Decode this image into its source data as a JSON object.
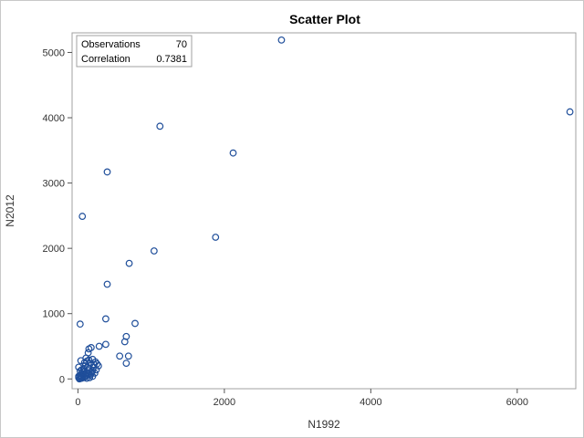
{
  "chart_data": {
    "type": "scatter",
    "title": "Scatter Plot",
    "xlabel": "N1992",
    "ylabel": "N2012",
    "xlim": [
      -80,
      6800
    ],
    "ylim": [
      -150,
      5300
    ],
    "xticks": [
      0,
      2000,
      4000,
      6000
    ],
    "yticks": [
      0,
      1000,
      2000,
      3000,
      4000,
      5000
    ],
    "grid": false,
    "marker_color": "#1f4e9a",
    "stats": {
      "observations_label": "Observations",
      "observations_value": "70",
      "correlation_label": "Correlation",
      "correlation_value": "0.7381"
    },
    "points": [
      [
        2780,
        5190
      ],
      [
        6720,
        4090
      ],
      [
        1120,
        3870
      ],
      [
        2120,
        3460
      ],
      [
        400,
        3170
      ],
      [
        60,
        2490
      ],
      [
        1880,
        2170
      ],
      [
        1040,
        1960
      ],
      [
        700,
        1770
      ],
      [
        400,
        1450
      ],
      [
        30,
        840
      ],
      [
        780,
        850
      ],
      [
        380,
        920
      ],
      [
        660,
        650
      ],
      [
        640,
        570
      ],
      [
        380,
        530
      ],
      [
        290,
        500
      ],
      [
        180,
        480
      ],
      [
        150,
        460
      ],
      [
        140,
        400
      ],
      [
        570,
        350
      ],
      [
        690,
        350
      ],
      [
        660,
        240
      ],
      [
        40,
        280
      ],
      [
        120,
        270
      ],
      [
        200,
        300
      ],
      [
        240,
        260
      ],
      [
        170,
        240
      ],
      [
        280,
        200
      ],
      [
        100,
        200
      ],
      [
        210,
        180
      ],
      [
        150,
        160
      ],
      [
        80,
        150
      ],
      [
        250,
        140
      ],
      [
        10,
        180
      ],
      [
        190,
        110
      ],
      [
        120,
        100
      ],
      [
        60,
        80
      ],
      [
        30,
        60
      ],
      [
        200,
        40
      ],
      [
        110,
        40
      ],
      [
        80,
        20
      ],
      [
        50,
        10
      ],
      [
        20,
        0
      ],
      [
        90,
        120
      ],
      [
        140,
        130
      ],
      [
        180,
        80
      ],
      [
        230,
        90
      ],
      [
        70,
        60
      ],
      [
        40,
        30
      ],
      [
        120,
        10
      ],
      [
        160,
        20
      ],
      [
        10,
        40
      ],
      [
        100,
        60
      ],
      [
        60,
        20
      ],
      [
        130,
        180
      ],
      [
        220,
        220
      ],
      [
        90,
        250
      ],
      [
        30,
        120
      ],
      [
        170,
        60
      ],
      [
        260,
        230
      ],
      [
        200,
        130
      ],
      [
        70,
        110
      ],
      [
        150,
        290
      ],
      [
        110,
        320
      ],
      [
        30,
        10
      ],
      [
        50,
        140
      ],
      [
        90,
        30
      ],
      [
        140,
        70
      ],
      [
        10,
        20
      ]
    ]
  }
}
